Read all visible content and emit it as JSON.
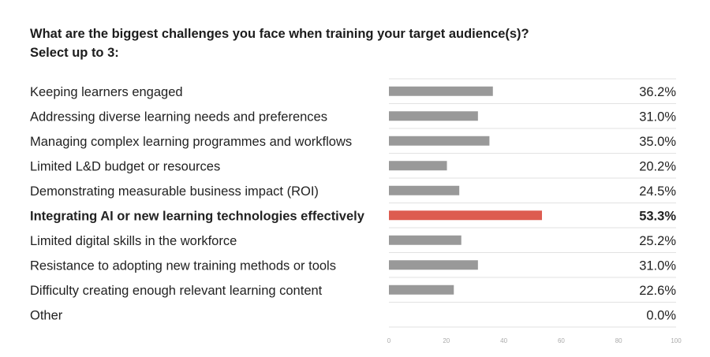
{
  "title": {
    "line1": "What are the biggest challenges you face when training your target audience(s)?",
    "line2": "Select up to 3:"
  },
  "colors": {
    "bar": "#999999",
    "highlight": "#dd5c50",
    "grid": "#e2e2e2",
    "text": "#222222",
    "tick": "#aaaaaa"
  },
  "chart_data": {
    "type": "bar",
    "orientation": "horizontal",
    "categories": [
      "Keeping learners engaged",
      "Addressing diverse learning needs and preferences",
      "Managing complex learning programmes and workflows",
      "Limited L&D budget or resources",
      "Demonstrating measurable business impact (ROI)",
      "Integrating AI or new learning technologies effectively",
      "Limited digital skills in the workforce",
      "Resistance to adopting new training methods or tools",
      "Difficulty creating enough relevant learning content",
      "Other"
    ],
    "values": [
      36.2,
      31.0,
      35.0,
      20.2,
      24.5,
      53.3,
      25.2,
      31.0,
      22.6,
      0.0
    ],
    "value_labels": [
      "36.2%",
      "31.0%",
      "35.0%",
      "20.2%",
      "24.5%",
      "53.3%",
      "25.2%",
      "31.0%",
      "22.6%",
      "0.0%"
    ],
    "highlighted_index": 5,
    "xlim": [
      0,
      100
    ],
    "xticks": [
      0,
      20,
      40,
      60,
      80,
      100
    ],
    "grid": true
  }
}
